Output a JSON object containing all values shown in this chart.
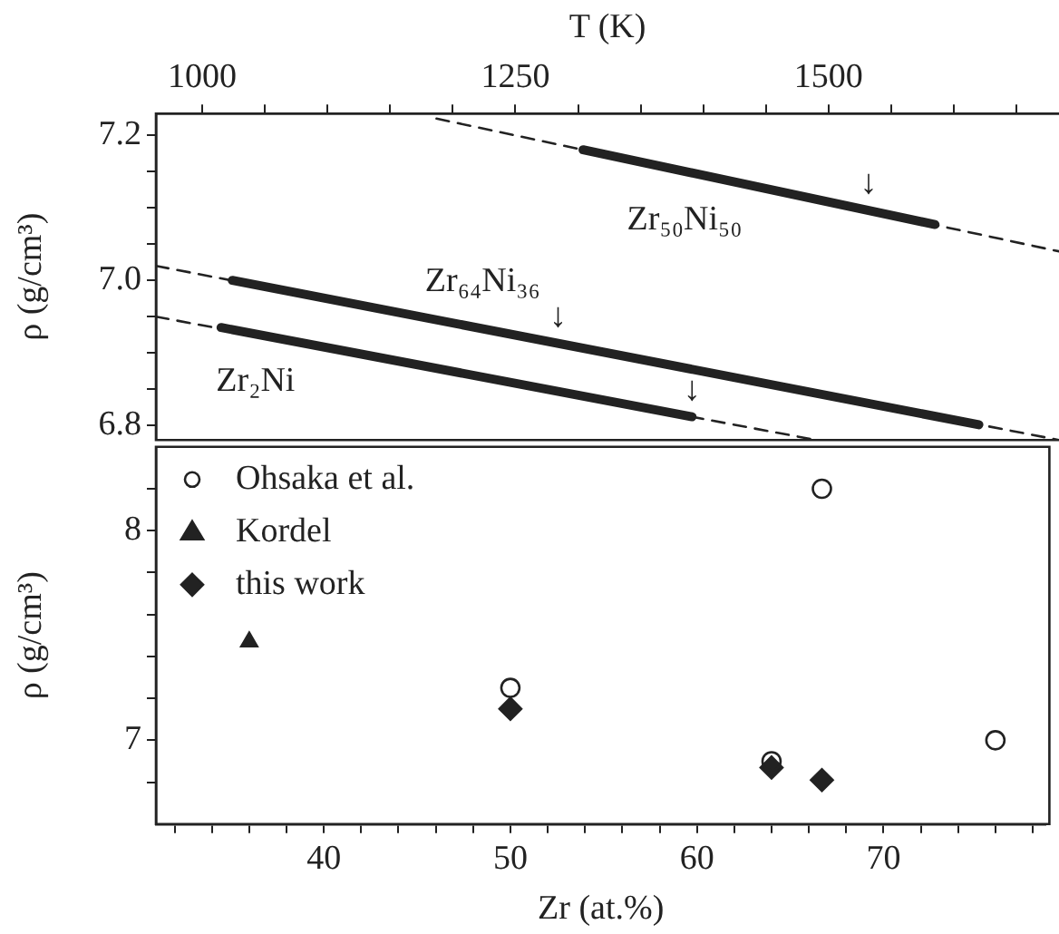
{
  "chart_data": [
    {
      "type": "line",
      "xlabel": "T (K)",
      "ylabel": "ρ (g/cm³)",
      "xlim": [
        963,
        1684
      ],
      "xticks": [
        1000,
        {
          "value": 1050,
          "label": null
        },
        {
          "value": 1100,
          "label": null
        },
        {
          "value": 1150,
          "label": null
        },
        {
          "value": 1200,
          "label": null
        },
        1250,
        {
          "value": 1300,
          "label": null
        },
        {
          "value": 1350,
          "label": null
        },
        {
          "value": 1400,
          "label": null
        },
        {
          "value": 1450,
          "label": null
        },
        1500,
        {
          "value": 1550,
          "label": null
        },
        {
          "value": 1600,
          "label": null
        },
        {
          "value": 1650,
          "label": null
        }
      ],
      "ylim": [
        6.78,
        7.23
      ],
      "yticks": [
        6.8,
        {
          "value": 6.85,
          "label": null
        },
        {
          "value": 6.9,
          "label": null
        },
        {
          "value": 6.95,
          "label": null
        },
        {
          "value": 7.0,
          "label": "7.0"
        },
        {
          "value": 7.05,
          "label": null
        },
        {
          "value": 7.1,
          "label": null
        },
        {
          "value": 7.15,
          "label": null
        },
        7.2
      ],
      "series": [
        {
          "name": "Zr₅₀Ni₅₀",
          "color": "#222222",
          "x": [
            1304,
            1585
          ],
          "values": [
            7.18,
            7.077
          ]
        },
        {
          "name": "Zr₆₄Ni₃₆",
          "color": "#222222",
          "x": [
            1024,
            1620
          ],
          "values": [
            7.0,
            6.801
          ]
        },
        {
          "name": "Zr₂Ni",
          "color": "#222222",
          "x": [
            1015,
            1391
          ],
          "values": [
            6.935,
            6.812
          ]
        },
        {
          "color": "#222222",
          "line_style": "dashed",
          "x": [
            1187,
            1684
          ],
          "values": [
            7.223,
            7.04
          ]
        },
        {
          "color": "#222222",
          "line_style": "dashed",
          "x": [
            963,
            1684
          ],
          "values": [
            7.02,
            6.78
          ]
        },
        {
          "color": "#222222",
          "line_style": "dashed",
          "x": [
            963,
            1490
          ],
          "values": [
            6.95,
            6.78
          ]
        }
      ],
      "annotations": [
        {
          "text": "↓",
          "x": 1532,
          "y": 7.097
        },
        {
          "text": "↓",
          "x": 1284,
          "y": 6.913
        },
        {
          "text": "↓",
          "x": 1391,
          "y": 6.812
        }
      ]
    },
    {
      "type": "scatter",
      "xlabel": "Zr (at.%)",
      "ylabel": "ρ (g/cm³)",
      "xlim": [
        31,
        78.7
      ],
      "xticks": [
        {
          "value": 32,
          "label": null
        },
        {
          "value": 34,
          "label": null
        },
        {
          "value": 36,
          "label": null
        },
        {
          "value": 38,
          "label": null
        },
        40,
        {
          "value": 42,
          "label": null
        },
        {
          "value": 44,
          "label": null
        },
        {
          "value": 46,
          "label": null
        },
        {
          "value": 48,
          "label": null
        },
        50,
        {
          "value": 52,
          "label": null
        },
        {
          "value": 54,
          "label": null
        },
        {
          "value": 56,
          "label": null
        },
        {
          "value": 58,
          "label": null
        },
        60,
        {
          "value": 62,
          "label": null
        },
        {
          "value": 64,
          "label": null
        },
        {
          "value": 66,
          "label": null
        },
        {
          "value": 68,
          "label": null
        },
        70,
        {
          "value": 72,
          "label": null
        },
        {
          "value": 74,
          "label": null
        },
        {
          "value": 76,
          "label": null
        },
        {
          "value": 78,
          "label": null
        }
      ],
      "ylim": [
        6.6,
        8.4
      ],
      "yticks": [
        {
          "value": 6.8,
          "label": null
        },
        7,
        {
          "value": 7.2,
          "label": null
        },
        {
          "value": 7.4,
          "label": null
        },
        {
          "value": 7.6,
          "label": null
        },
        {
          "value": 7.8,
          "label": null
        },
        8,
        {
          "value": 8.2,
          "label": null
        }
      ],
      "legend": "top left",
      "series": [
        {
          "name": "Ohsaka et al.",
          "color": "#222222",
          "marker": "circle",
          "x": [
            50,
            64,
            66.7,
            76
          ],
          "values": [
            7.25,
            6.9,
            8.2,
            7.0
          ]
        },
        {
          "name": "Kordel",
          "color": "#222222",
          "marker": "triangle",
          "x": [
            36
          ],
          "values": [
            7.47
          ]
        },
        {
          "name": "this work",
          "color": "#222222",
          "marker": "diamond",
          "x": [
            50,
            64,
            66.7
          ],
          "values": [
            7.15,
            6.87,
            6.81
          ]
        }
      ]
    }
  ]
}
